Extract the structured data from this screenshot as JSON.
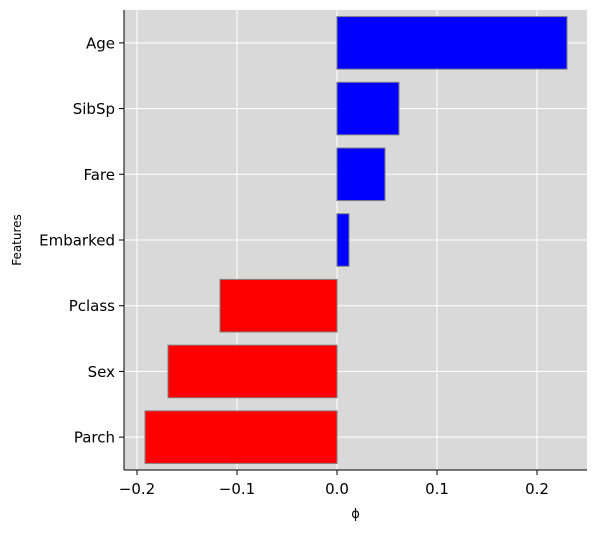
{
  "chart_data": {
    "type": "bar",
    "orientation": "horizontal",
    "categories": [
      "Age",
      "SibSp",
      "Fare",
      "Embarked",
      "Pclass",
      "Sex",
      "Parch"
    ],
    "values": [
      0.23,
      0.062,
      0.048,
      0.012,
      -0.117,
      -0.169,
      -0.192
    ],
    "xlabel": "ϕ",
    "ylabel": "Features",
    "xlim": [
      -0.213,
      0.25
    ],
    "xticks": [
      -0.2,
      -0.1,
      0.0,
      0.1,
      0.2
    ],
    "xtick_labels": [
      "−0.2",
      "−0.1",
      "0.0",
      "0.1",
      "0.2"
    ],
    "grid": true,
    "colors": {
      "positive": "#0000ff",
      "negative": "#ff0000",
      "bar_edge": "#808080",
      "background": "#d9d9d9",
      "grid": "#ffffff"
    }
  }
}
